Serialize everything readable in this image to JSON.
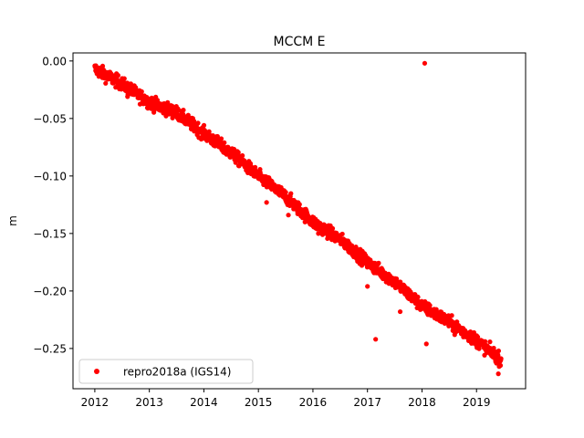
{
  "chart_data": {
    "type": "scatter",
    "title": "MCCM E",
    "xlabel": "",
    "ylabel": "m",
    "xlim": [
      2011.6,
      2019.9
    ],
    "ylim": [
      -0.285,
      0.007
    ],
    "xticks": [
      2012,
      2013,
      2014,
      2015,
      2016,
      2017,
      2018,
      2019
    ],
    "xtick_labels": [
      "2012",
      "2013",
      "2014",
      "2015",
      "2016",
      "2017",
      "2018",
      "2019"
    ],
    "yticks": [
      0.0,
      -0.05,
      -0.1,
      -0.15,
      -0.2,
      -0.25
    ],
    "ytick_labels": [
      "0.00",
      "−0.05",
      "−0.10",
      "−0.15",
      "−0.20",
      "−0.25"
    ],
    "grid": false,
    "legend": {
      "position": "lower-left",
      "entries": [
        "repro2018a (IGS14)"
      ]
    },
    "series": [
      {
        "name": "repro2018a (IGS14)",
        "color": "#ff0000",
        "marker": "circle",
        "trend": [
          [
            2012.0,
            -0.007
          ],
          [
            2012.5,
            -0.02
          ],
          [
            2013.0,
            -0.036
          ],
          [
            2013.5,
            -0.045
          ],
          [
            2014.0,
            -0.063
          ],
          [
            2014.5,
            -0.08
          ],
          [
            2015.0,
            -0.1
          ],
          [
            2015.5,
            -0.118
          ],
          [
            2016.0,
            -0.14
          ],
          [
            2016.5,
            -0.155
          ],
          [
            2017.0,
            -0.175
          ],
          [
            2017.5,
            -0.192
          ],
          [
            2018.0,
            -0.213
          ],
          [
            2018.5,
            -0.227
          ],
          [
            2019.0,
            -0.243
          ],
          [
            2019.45,
            -0.26
          ]
        ],
        "outliers": [
          [
            2018.05,
            -0.002
          ],
          [
            2017.15,
            -0.242
          ],
          [
            2018.08,
            -0.246
          ],
          [
            2017.0,
            -0.196
          ],
          [
            2015.15,
            -0.123
          ],
          [
            2015.55,
            -0.134
          ],
          [
            2017.6,
            -0.218
          ],
          [
            2018.6,
            -0.238
          ],
          [
            2019.4,
            -0.272
          ],
          [
            2016.0,
            -0.143
          ],
          [
            2016.1,
            -0.15
          ],
          [
            2012.6,
            -0.031
          ]
        ]
      }
    ]
  }
}
